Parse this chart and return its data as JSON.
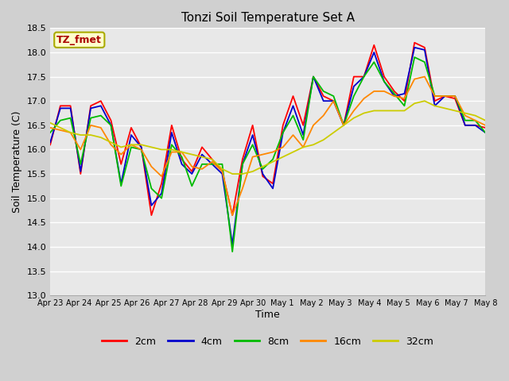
{
  "title": "Tonzi Soil Temperature Set A",
  "xlabel": "Time",
  "ylabel": "Soil Temperature (C)",
  "ylim": [
    13.0,
    18.5
  ],
  "fig_bg": "#d0d0d0",
  "plot_bg": "#e8e8e8",
  "label_box_text": "TZ_fmet",
  "label_box_color": "#ffffcc",
  "label_box_border": "#aaaa00",
  "label_text_color": "#aa0000",
  "series_colors": [
    "#ff0000",
    "#0000cc",
    "#00bb00",
    "#ff8800",
    "#cccc00"
  ],
  "series_labels": [
    "2cm",
    "4cm",
    "8cm",
    "16cm",
    "32cm"
  ],
  "xtick_labels": [
    "Apr 23",
    "Apr 24",
    "Apr 25",
    "Apr 26",
    "Apr 27",
    "Apr 28",
    "Apr 29",
    "Apr 30",
    "May 1",
    "May 2",
    "May 3",
    "May 4",
    "May 5",
    "May 6",
    "May 7",
    "May 8"
  ],
  "data_2cm": [
    16.1,
    16.9,
    16.9,
    15.5,
    16.9,
    17.0,
    16.6,
    15.7,
    16.45,
    16.05,
    14.65,
    15.3,
    16.5,
    15.8,
    15.55,
    16.05,
    15.8,
    15.55,
    14.65,
    15.8,
    16.5,
    15.45,
    15.3,
    16.5,
    17.1,
    16.5,
    17.5,
    17.1,
    17.0,
    16.5,
    17.5,
    17.5,
    18.15,
    17.5,
    17.2,
    17.0,
    18.2,
    18.1,
    17.0,
    17.1,
    17.05,
    16.5,
    16.5,
    16.45
  ],
  "data_4cm": [
    16.15,
    16.85,
    16.85,
    15.55,
    16.85,
    16.9,
    16.5,
    15.3,
    16.3,
    16.05,
    14.85,
    15.1,
    16.35,
    15.7,
    15.5,
    15.9,
    15.7,
    15.5,
    14.05,
    15.7,
    16.3,
    15.5,
    15.2,
    16.35,
    16.9,
    16.3,
    17.5,
    17.0,
    17.0,
    16.5,
    17.3,
    17.5,
    18.0,
    17.4,
    17.1,
    17.15,
    18.1,
    18.05,
    16.9,
    17.1,
    17.1,
    16.5,
    16.5,
    16.35
  ],
  "data_8cm": [
    16.35,
    16.6,
    16.65,
    15.7,
    16.65,
    16.7,
    16.5,
    15.25,
    16.05,
    16.0,
    15.2,
    15.0,
    16.1,
    15.85,
    15.25,
    15.7,
    15.7,
    15.7,
    13.9,
    15.7,
    16.1,
    15.6,
    15.8,
    16.35,
    16.7,
    16.2,
    17.5,
    17.2,
    17.1,
    16.5,
    17.1,
    17.5,
    17.8,
    17.4,
    17.15,
    16.9,
    17.9,
    17.8,
    17.1,
    17.1,
    17.1,
    16.6,
    16.6,
    16.35
  ],
  "data_16cm": [
    16.45,
    16.4,
    16.35,
    16.0,
    16.5,
    16.45,
    16.1,
    15.9,
    16.1,
    16.0,
    15.65,
    15.45,
    15.95,
    15.95,
    15.65,
    15.6,
    15.75,
    15.55,
    14.65,
    15.2,
    15.85,
    15.9,
    15.95,
    16.05,
    16.3,
    16.05,
    16.5,
    16.7,
    17.0,
    16.5,
    16.8,
    17.05,
    17.2,
    17.2,
    17.1,
    17.05,
    17.45,
    17.5,
    17.1,
    17.1,
    17.1,
    16.7,
    16.6,
    16.5
  ],
  "data_32cm": [
    16.55,
    16.45,
    16.35,
    16.3,
    16.3,
    16.25,
    16.15,
    16.05,
    16.1,
    16.1,
    16.05,
    16.0,
    16.0,
    15.95,
    15.9,
    15.85,
    15.8,
    15.6,
    15.5,
    15.5,
    15.55,
    15.65,
    15.75,
    15.85,
    15.95,
    16.05,
    16.1,
    16.2,
    16.35,
    16.5,
    16.65,
    16.75,
    16.8,
    16.8,
    16.8,
    16.8,
    16.95,
    17.0,
    16.9,
    16.85,
    16.8,
    16.75,
    16.7,
    16.6
  ]
}
